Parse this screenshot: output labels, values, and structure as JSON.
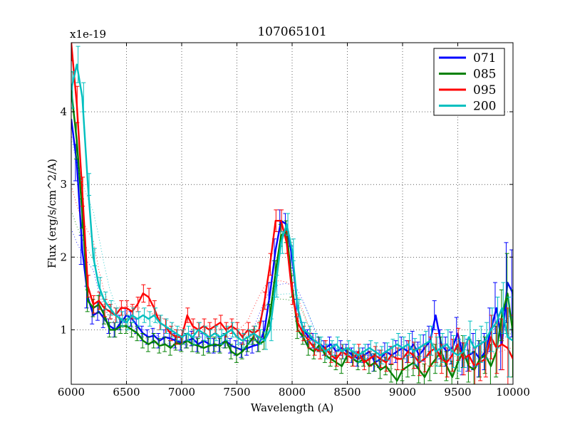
{
  "chart_data": {
    "type": "line",
    "title": "107065101",
    "xlabel": "Wavelength (A)",
    "ylabel": "Flux (erg/s/cm^2/A)",
    "scale_label": "x1e-19",
    "xlim": [
      6000,
      10000
    ],
    "ylim": [
      0.25,
      4.95
    ],
    "xticks": [
      6000,
      6500,
      7000,
      7500,
      8000,
      8500,
      9000,
      9500,
      10000
    ],
    "yticks": [
      1,
      2,
      3,
      4
    ],
    "grid": true,
    "legend_position": "top-right",
    "x": [
      6000,
      6050,
      6100,
      6150,
      6200,
      6250,
      6300,
      6350,
      6400,
      6450,
      6500,
      6550,
      6600,
      6650,
      6700,
      6750,
      6800,
      6850,
      6900,
      6950,
      7000,
      7050,
      7100,
      7150,
      7200,
      7250,
      7300,
      7350,
      7400,
      7450,
      7500,
      7550,
      7600,
      7650,
      7700,
      7750,
      7800,
      7850,
      7900,
      7950,
      8000,
      8050,
      8100,
      8150,
      8200,
      8250,
      8300,
      8350,
      8400,
      8450,
      8500,
      8550,
      8600,
      8650,
      8700,
      8750,
      8800,
      8850,
      8900,
      8950,
      9000,
      9050,
      9100,
      9150,
      9200,
      9250,
      9300,
      9350,
      9400,
      9450,
      9500,
      9550,
      9600,
      9650,
      9700,
      9750,
      9800,
      9850,
      9900,
      9950,
      10000
    ],
    "series": [
      {
        "name": "071",
        "color": "#0000ff",
        "values": [
          3.9,
          3.3,
          2.1,
          1.45,
          1.2,
          1.25,
          1.15,
          1.05,
          1.0,
          1.1,
          1.2,
          1.15,
          1.05,
          0.95,
          0.9,
          0.92,
          0.85,
          0.9,
          0.88,
          0.85,
          0.82,
          0.85,
          0.88,
          0.8,
          0.85,
          0.8,
          0.78,
          0.8,
          0.85,
          0.78,
          0.75,
          0.72,
          0.75,
          0.78,
          0.8,
          1.0,
          1.5,
          2.1,
          2.5,
          2.45,
          2.0,
          1.3,
          1.0,
          0.9,
          0.85,
          0.8,
          0.75,
          0.8,
          0.7,
          0.75,
          0.7,
          0.65,
          0.6,
          0.65,
          0.7,
          0.55,
          0.6,
          0.7,
          0.65,
          0.7,
          0.75,
          0.7,
          0.8,
          0.65,
          0.75,
          0.85,
          1.2,
          0.8,
          0.7,
          0.75,
          0.95,
          0.6,
          0.65,
          0.7,
          0.6,
          0.7,
          1.0,
          1.3,
          0.8,
          1.65,
          1.5
        ],
        "errors": [
          0.25,
          0.25,
          0.2,
          0.15,
          0.12,
          0.12,
          0.12,
          0.1,
          0.1,
          0.1,
          0.1,
          0.1,
          0.1,
          0.1,
          0.1,
          0.1,
          0.1,
          0.1,
          0.1,
          0.1,
          0.1,
          0.1,
          0.1,
          0.1,
          0.1,
          0.1,
          0.1,
          0.1,
          0.1,
          0.1,
          0.1,
          0.1,
          0.1,
          0.1,
          0.1,
          0.12,
          0.15,
          0.15,
          0.15,
          0.15,
          0.15,
          0.12,
          0.1,
          0.1,
          0.1,
          0.1,
          0.1,
          0.1,
          0.1,
          0.1,
          0.1,
          0.1,
          0.1,
          0.1,
          0.1,
          0.12,
          0.12,
          0.12,
          0.12,
          0.15,
          0.15,
          0.15,
          0.18,
          0.18,
          0.18,
          0.2,
          0.2,
          0.2,
          0.2,
          0.22,
          0.22,
          0.22,
          0.22,
          0.25,
          0.25,
          0.25,
          0.3,
          0.35,
          0.35,
          0.55,
          0.6
        ]
      },
      {
        "name": "085",
        "color": "#008000",
        "values": [
          4.3,
          3.6,
          2.6,
          1.4,
          1.3,
          1.35,
          1.2,
          1.0,
          1.0,
          1.05,
          1.05,
          1.0,
          0.95,
          0.85,
          0.8,
          0.85,
          0.78,
          0.8,
          0.75,
          0.82,
          0.8,
          0.85,
          0.8,
          0.78,
          0.75,
          0.78,
          0.8,
          0.78,
          0.85,
          0.7,
          0.65,
          0.7,
          0.8,
          0.9,
          0.8,
          0.85,
          1.2,
          1.8,
          2.3,
          2.35,
          1.6,
          1.0,
          0.9,
          0.75,
          0.7,
          0.8,
          0.65,
          0.6,
          0.55,
          0.5,
          0.65,
          0.6,
          0.55,
          0.6,
          0.5,
          0.55,
          0.45,
          0.5,
          0.4,
          0.3,
          0.45,
          0.5,
          0.55,
          0.45,
          0.35,
          0.5,
          0.6,
          0.7,
          0.5,
          0.35,
          0.55,
          0.7,
          0.5,
          0.45,
          0.6,
          0.65,
          0.5,
          0.7,
          1.2,
          1.5,
          0.95
        ],
        "errors": [
          0.25,
          0.25,
          0.2,
          0.15,
          0.12,
          0.12,
          0.12,
          0.1,
          0.1,
          0.1,
          0.1,
          0.1,
          0.1,
          0.1,
          0.1,
          0.1,
          0.1,
          0.1,
          0.1,
          0.1,
          0.1,
          0.1,
          0.1,
          0.1,
          0.1,
          0.1,
          0.1,
          0.1,
          0.1,
          0.1,
          0.1,
          0.1,
          0.1,
          0.1,
          0.1,
          0.12,
          0.15,
          0.15,
          0.15,
          0.15,
          0.15,
          0.12,
          0.1,
          0.1,
          0.1,
          0.1,
          0.1,
          0.1,
          0.1,
          0.1,
          0.1,
          0.1,
          0.1,
          0.1,
          0.1,
          0.12,
          0.12,
          0.12,
          0.12,
          0.15,
          0.15,
          0.15,
          0.18,
          0.18,
          0.18,
          0.2,
          0.2,
          0.2,
          0.2,
          0.22,
          0.22,
          0.22,
          0.22,
          0.25,
          0.25,
          0.25,
          0.3,
          0.35,
          0.35,
          0.55,
          0.6
        ]
      },
      {
        "name": "095",
        "color": "#ff0000",
        "values": [
          4.95,
          4.1,
          2.9,
          1.6,
          1.35,
          1.4,
          1.3,
          1.25,
          1.2,
          1.3,
          1.3,
          1.25,
          1.35,
          1.5,
          1.45,
          1.3,
          1.1,
          1.05,
          0.95,
          0.9,
          0.9,
          1.2,
          1.05,
          1.0,
          1.05,
          1.0,
          1.05,
          1.1,
          1.0,
          1.05,
          1.0,
          0.9,
          1.0,
          0.95,
          1.0,
          1.4,
          1.9,
          2.5,
          2.5,
          2.2,
          1.5,
          1.1,
          0.95,
          0.85,
          0.75,
          0.7,
          0.75,
          0.65,
          0.6,
          0.7,
          0.65,
          0.6,
          0.7,
          0.55,
          0.6,
          0.65,
          0.6,
          0.55,
          0.65,
          0.6,
          0.6,
          0.7,
          0.65,
          0.55,
          0.6,
          0.7,
          0.75,
          0.6,
          0.55,
          0.65,
          0.8,
          0.6,
          0.65,
          0.5,
          0.55,
          0.6,
          0.9,
          0.75,
          0.8,
          0.75,
          0.6
        ],
        "errors": [
          0.25,
          0.25,
          0.2,
          0.15,
          0.12,
          0.12,
          0.12,
          0.1,
          0.1,
          0.1,
          0.1,
          0.1,
          0.1,
          0.12,
          0.12,
          0.1,
          0.1,
          0.1,
          0.1,
          0.1,
          0.1,
          0.1,
          0.1,
          0.1,
          0.1,
          0.1,
          0.1,
          0.1,
          0.1,
          0.1,
          0.1,
          0.1,
          0.1,
          0.1,
          0.1,
          0.12,
          0.15,
          0.15,
          0.15,
          0.15,
          0.15,
          0.12,
          0.1,
          0.1,
          0.1,
          0.1,
          0.1,
          0.1,
          0.1,
          0.1,
          0.1,
          0.1,
          0.1,
          0.1,
          0.1,
          0.12,
          0.12,
          0.12,
          0.12,
          0.15,
          0.15,
          0.15,
          0.18,
          0.18,
          0.18,
          0.2,
          0.2,
          0.2,
          0.2,
          0.22,
          0.22,
          0.22,
          0.22,
          0.25,
          0.25,
          0.25,
          0.3,
          0.35,
          0.35,
          0.55,
          0.6
        ]
      },
      {
        "name": "200",
        "color": "#00bfbf",
        "values": [
          4.3,
          4.65,
          4.2,
          3.0,
          2.0,
          1.6,
          1.4,
          1.3,
          1.2,
          1.15,
          1.1,
          1.2,
          1.15,
          1.2,
          1.15,
          1.2,
          1.1,
          1.05,
          1.0,
          0.95,
          0.9,
          0.95,
          0.9,
          1.0,
          0.95,
          0.9,
          0.95,
          0.9,
          0.95,
          1.0,
          0.9,
          0.85,
          0.9,
          0.95,
          0.9,
          0.85,
          1.0,
          1.6,
          2.2,
          2.45,
          2.1,
          1.3,
          1.0,
          0.95,
          0.85,
          0.8,
          0.7,
          0.75,
          0.8,
          0.7,
          0.75,
          0.7,
          0.65,
          0.7,
          0.75,
          0.7,
          0.65,
          0.7,
          0.75,
          0.8,
          0.75,
          0.8,
          0.7,
          0.75,
          0.8,
          0.85,
          0.7,
          0.75,
          0.8,
          0.7,
          0.65,
          0.7,
          0.9,
          0.75,
          0.8,
          0.85,
          1.0,
          1.1,
          1.3,
          0.9,
          0.85
        ],
        "errors": [
          0.25,
          0.25,
          0.2,
          0.15,
          0.12,
          0.12,
          0.12,
          0.1,
          0.1,
          0.1,
          0.1,
          0.1,
          0.1,
          0.1,
          0.1,
          0.1,
          0.1,
          0.1,
          0.1,
          0.1,
          0.1,
          0.1,
          0.1,
          0.1,
          0.1,
          0.1,
          0.1,
          0.1,
          0.1,
          0.1,
          0.1,
          0.1,
          0.1,
          0.1,
          0.1,
          0.12,
          0.15,
          0.15,
          0.15,
          0.15,
          0.15,
          0.12,
          0.1,
          0.1,
          0.1,
          0.1,
          0.1,
          0.1,
          0.1,
          0.1,
          0.1,
          0.1,
          0.1,
          0.1,
          0.1,
          0.12,
          0.12,
          0.12,
          0.12,
          0.15,
          0.15,
          0.15,
          0.18,
          0.18,
          0.18,
          0.2,
          0.2,
          0.2,
          0.2,
          0.22,
          0.22,
          0.22,
          0.22,
          0.25,
          0.25,
          0.25,
          0.3,
          0.35,
          0.35,
          0.55,
          0.6
        ]
      }
    ]
  }
}
